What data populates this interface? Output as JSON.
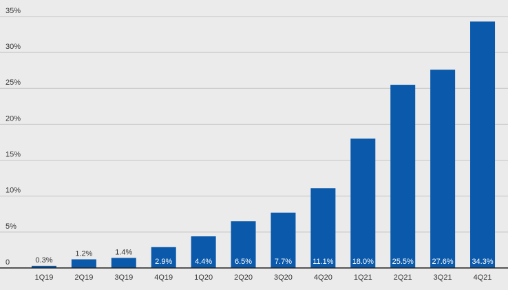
{
  "chart_data": {
    "type": "bar",
    "categories": [
      "1Q19",
      "2Q19",
      "3Q19",
      "4Q19",
      "1Q20",
      "2Q20",
      "3Q20",
      "4Q20",
      "1Q21",
      "2Q21",
      "3Q21",
      "4Q21"
    ],
    "values": [
      0.3,
      1.2,
      1.4,
      2.9,
      4.4,
      6.5,
      7.7,
      11.1,
      18.0,
      25.5,
      27.6,
      34.3
    ],
    "value_labels": [
      "0.3%",
      "1.2%",
      "1.4%",
      "2.9%",
      "4.4%",
      "6.5%",
      "7.7%",
      "11.1%",
      "18.0%",
      "25.5%",
      "27.6%",
      "34.3%"
    ],
    "color": "#0a59ab",
    "ylim": [
      0,
      35
    ],
    "yticks": [
      0,
      {
        "value": 5,
        "label": "5%"
      },
      {
        "value": 10,
        "label": "10%"
      },
      {
        "value": 15,
        "label": "15%"
      },
      {
        "value": 20,
        "label": "20%"
      },
      {
        "value": 25,
        "label": "25%"
      },
      {
        "value": 30,
        "label": "30%"
      },
      {
        "value": 35,
        "label": "35%"
      }
    ],
    "grid": true
  }
}
